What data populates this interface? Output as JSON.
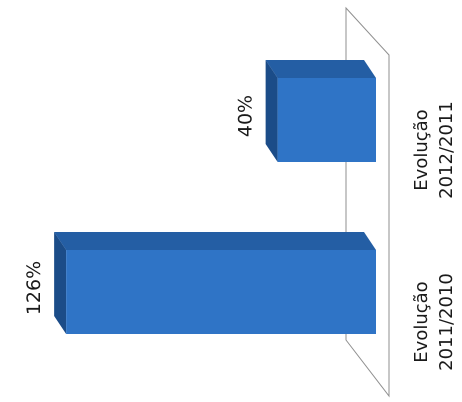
{
  "chart_data": {
    "type": "bar",
    "orientation": "horizontal",
    "three_d": true,
    "categories": [
      "Evolução 2011/2010",
      "Evolução 2012/2011"
    ],
    "values": [
      126,
      40
    ],
    "value_labels": [
      "126%",
      "40%"
    ],
    "unit": "%",
    "title": "",
    "xlabel": "",
    "ylabel": "",
    "xlim": [
      0,
      135
    ],
    "grid": false,
    "legend": "none",
    "bar_front_color": "#2f74c6",
    "bar_top_color": "#245ea4",
    "bar_side_color": "#1b4c88",
    "plane_color": "#8f8f8f"
  }
}
